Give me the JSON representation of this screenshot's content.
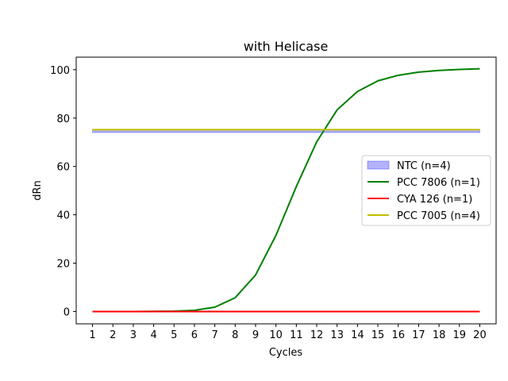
{
  "chart_data": {
    "type": "line",
    "title": "with Helicase",
    "xlabel": "Cycles",
    "ylabel": "dRn",
    "x": [
      1,
      2,
      3,
      4,
      5,
      6,
      7,
      8,
      9,
      10,
      11,
      12,
      13,
      14,
      15,
      16,
      17,
      18,
      19,
      20
    ],
    "xlim": [
      0.2,
      20.8
    ],
    "ylim": [
      -5.1,
      105.2
    ],
    "yticks": [
      0,
      20,
      40,
      60,
      80,
      100
    ],
    "grid": false,
    "legend_position": "center-right",
    "series": [
      {
        "name": "NTC (n=4)",
        "kind": "band",
        "color": "#0000ff",
        "lower": 74.0,
        "upper": 75.3
      },
      {
        "name": "PCC 7806 (n=1)",
        "kind": "line",
        "color": "#008000",
        "values": [
          0.0,
          0.0,
          0.0,
          0.05,
          0.15,
          0.5,
          1.8,
          5.7,
          15.1,
          31.5,
          51.7,
          70.2,
          83.4,
          91.0,
          95.4,
          97.7,
          99.0,
          99.7,
          100.1,
          100.4
        ]
      },
      {
        "name": "CYA 126 (n=1)",
        "kind": "line",
        "color": "#ff0000",
        "values": [
          0,
          0,
          0,
          0,
          0,
          0,
          0,
          0,
          0,
          0,
          0,
          0,
          0,
          0,
          0,
          0,
          0,
          0,
          0,
          0
        ]
      },
      {
        "name": "PCC 7005 (n=4)",
        "kind": "line",
        "color": "#bfbf00",
        "values": [
          75.2,
          75.2,
          75.2,
          75.2,
          75.2,
          75.2,
          75.2,
          75.2,
          75.2,
          75.2,
          75.2,
          75.2,
          75.2,
          75.2,
          75.2,
          75.2,
          75.2,
          75.2,
          75.2,
          75.2
        ]
      }
    ]
  }
}
